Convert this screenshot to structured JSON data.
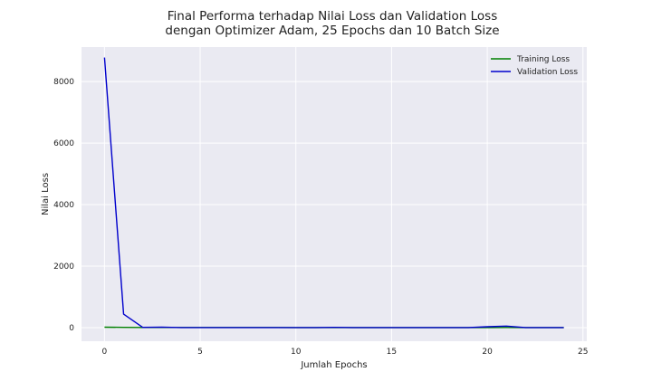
{
  "chart_data": {
    "type": "line",
    "title_lines": [
      "Final Performa terhadap Nilai Loss dan Validation Loss",
      "dengan Optimizer Adam, 25 Epochs dan 10 Batch Size"
    ],
    "xlabel": "Jumlah Epochs",
    "ylabel": "Nilai Loss",
    "xlim": [
      -1.2,
      25.2
    ],
    "ylim": [
      -440,
      9120
    ],
    "xticks": [
      0,
      5,
      10,
      15,
      20,
      25
    ],
    "yticks": [
      0,
      2000,
      4000,
      6000,
      8000
    ],
    "grid": true,
    "legend_position": "top-right",
    "x": [
      0,
      1,
      2,
      3,
      4,
      5,
      6,
      7,
      8,
      9,
      10,
      11,
      12,
      13,
      14,
      15,
      16,
      17,
      18,
      19,
      20,
      21,
      22,
      23,
      24
    ],
    "series": [
      {
        "name": "Training Loss",
        "color": "#008000",
        "values": [
          15,
          10,
          8,
          8,
          7,
          7,
          6,
          6,
          6,
          6,
          5,
          5,
          5,
          5,
          5,
          5,
          5,
          4,
          4,
          4,
          5,
          6,
          5,
          4,
          4
        ]
      },
      {
        "name": "Validation Loss",
        "color": "#0000cc",
        "values": [
          8780,
          440,
          10,
          20,
          5,
          5,
          5,
          5,
          5,
          5,
          5,
          5,
          10,
          5,
          5,
          5,
          5,
          3,
          3,
          3,
          30,
          50,
          5,
          5,
          3
        ]
      }
    ]
  }
}
